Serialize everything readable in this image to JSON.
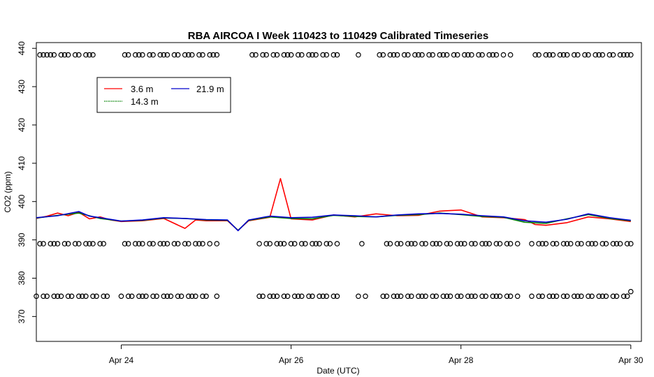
{
  "chart_data": {
    "type": "line",
    "title": "RBA AIRCOA I  Week 110423 to 110429  Calibrated Timeseries",
    "xlabel": "Date (UTC)",
    "ylabel": "CO2 (ppm)",
    "xlim": [
      "2011-04-23 00:00",
      "2011-04-30 03:00"
    ],
    "ylim": [
      363.5,
      441.5
    ],
    "x_ticks": [
      {
        "x": "2011-04-24 00:00",
        "label": "Apr 24"
      },
      {
        "x": "2011-04-26 00:00",
        "label": "Apr 26"
      },
      {
        "x": "2011-04-28 00:00",
        "label": "Apr 28"
      },
      {
        "x": "2011-04-30 00:00",
        "label": "Apr 30"
      }
    ],
    "y_ticks": [
      370,
      380,
      390,
      400,
      410,
      420,
      430,
      440
    ],
    "grid": false,
    "legend_position": "top-left",
    "legend": [
      {
        "label": "3.6 m",
        "color": "#ff0000"
      },
      {
        "label": "21.9 m",
        "color": "#0000cc"
      },
      {
        "label": "14.3 m",
        "color": "#008000"
      }
    ],
    "series": [
      {
        "name": "3.6 m",
        "color": "#ff0000",
        "x": [
          "2011-04-23 00:00",
          "2011-04-23 03:00",
          "2011-04-23 06:00",
          "2011-04-23 09:00",
          "2011-04-23 12:00",
          "2011-04-23 15:00",
          "2011-04-23 18:00",
          "2011-04-23 21:00",
          "2011-04-24 00:00",
          "2011-04-24 06:00",
          "2011-04-24 12:00",
          "2011-04-24 18:00",
          "2011-04-24 21:00",
          "2011-04-25 00:00",
          "2011-04-25 06:00",
          "2011-04-25 09:00",
          "2011-04-25 12:00",
          "2011-04-25 18:00",
          "2011-04-25 21:00",
          "2011-04-26 00:00",
          "2011-04-26 06:00",
          "2011-04-26 12:00",
          "2011-04-26 18:00",
          "2011-04-27 00:00",
          "2011-04-27 06:00",
          "2011-04-27 12:00",
          "2011-04-27 18:00",
          "2011-04-28 00:00",
          "2011-04-28 06:00",
          "2011-04-28 12:00",
          "2011-04-28 18:00",
          "2011-04-28 21:00",
          "2011-04-29 00:00",
          "2011-04-29 06:00",
          "2011-04-29 12:00",
          "2011-04-29 18:00",
          "2011-04-30 00:00"
        ],
        "y": [
          395.6,
          396.2,
          397.0,
          396.3,
          397.2,
          395.5,
          396.0,
          395.2,
          394.8,
          395.0,
          395.6,
          393.0,
          395.2,
          395.0,
          395.0,
          392.5,
          395.0,
          395.9,
          406.0,
          395.5,
          395.2,
          396.5,
          396.0,
          396.8,
          396.3,
          396.4,
          397.5,
          397.8,
          396.0,
          395.8,
          395.3,
          394.0,
          393.8,
          394.5,
          396.0,
          395.5,
          394.8
        ]
      },
      {
        "name": "14.3 m",
        "color": "#008000",
        "x": [
          "2011-04-23 00:00",
          "2011-04-23 06:00",
          "2011-04-23 12:00",
          "2011-04-23 18:00",
          "2011-04-24 00:00",
          "2011-04-24 06:00",
          "2011-04-24 12:00",
          "2011-04-24 18:00",
          "2011-04-25 00:00",
          "2011-04-25 06:00",
          "2011-04-25 09:00",
          "2011-04-25 12:00",
          "2011-04-25 18:00",
          "2011-04-26 00:00",
          "2011-04-26 06:00",
          "2011-04-26 12:00",
          "2011-04-26 18:00",
          "2011-04-27 00:00",
          "2011-04-27 06:00",
          "2011-04-27 12:00",
          "2011-04-27 18:00",
          "2011-04-28 00:00",
          "2011-04-28 06:00",
          "2011-04-28 12:00",
          "2011-04-28 18:00",
          "2011-04-29 00:00",
          "2011-04-29 06:00",
          "2011-04-29 12:00",
          "2011-04-29 18:00",
          "2011-04-30 00:00"
        ],
        "y": [
          395.7,
          396.4,
          397.0,
          395.6,
          394.9,
          395.1,
          395.7,
          395.6,
          395.2,
          395.1,
          392.5,
          395.1,
          396.0,
          395.6,
          395.5,
          396.4,
          396.1,
          396.0,
          396.4,
          396.6,
          397.0,
          396.6,
          396.1,
          395.9,
          394.6,
          394.3,
          395.5,
          396.6,
          395.6,
          395.0
        ]
      },
      {
        "name": "21.9 m",
        "color": "#0000cc",
        "x": [
          "2011-04-23 00:00",
          "2011-04-23 06:00",
          "2011-04-23 12:00",
          "2011-04-23 15:00",
          "2011-04-23 18:00",
          "2011-04-24 00:00",
          "2011-04-24 06:00",
          "2011-04-24 12:00",
          "2011-04-24 18:00",
          "2011-04-25 00:00",
          "2011-04-25 06:00",
          "2011-04-25 09:00",
          "2011-04-25 12:00",
          "2011-04-25 18:00",
          "2011-04-26 00:00",
          "2011-04-26 06:00",
          "2011-04-26 12:00",
          "2011-04-26 18:00",
          "2011-04-27 00:00",
          "2011-04-27 06:00",
          "2011-04-27 12:00",
          "2011-04-27 18:00",
          "2011-04-28 00:00",
          "2011-04-28 06:00",
          "2011-04-28 12:00",
          "2011-04-28 18:00",
          "2011-04-29 00:00",
          "2011-04-29 06:00",
          "2011-04-29 12:00",
          "2011-04-29 18:00",
          "2011-04-30 00:00"
        ],
        "y": [
          395.8,
          396.3,
          397.4,
          396.2,
          395.8,
          394.9,
          395.2,
          395.8,
          395.6,
          395.3,
          395.2,
          392.4,
          395.2,
          396.2,
          395.8,
          395.9,
          396.5,
          396.3,
          396.0,
          396.5,
          396.8,
          396.9,
          396.7,
          396.3,
          396.0,
          395.0,
          394.6,
          395.4,
          396.8,
          395.8,
          395.1
        ]
      }
    ],
    "reference_markers": [
      {
        "name": "high",
        "y": 438.3,
        "x": [
          "2011-04-23 01:00",
          "2011-04-23 02:00",
          "2011-04-23 03:00",
          "2011-04-23 04:00",
          "2011-04-23 05:00",
          "2011-04-23 07:00",
          "2011-04-23 08:00",
          "2011-04-23 09:00",
          "2011-04-23 11:00",
          "2011-04-23 12:00",
          "2011-04-23 14:00",
          "2011-04-23 15:00",
          "2011-04-23 16:00",
          "2011-04-24 01:00",
          "2011-04-24 02:00",
          "2011-04-24 04:00",
          "2011-04-24 05:00",
          "2011-04-24 06:00",
          "2011-04-24 08:00",
          "2011-04-24 09:00",
          "2011-04-24 11:00",
          "2011-04-24 12:00",
          "2011-04-24 13:00",
          "2011-04-24 15:00",
          "2011-04-24 16:00",
          "2011-04-24 18:00",
          "2011-04-24 19:00",
          "2011-04-24 20:00",
          "2011-04-24 22:00",
          "2011-04-24 23:00",
          "2011-04-25 01:00",
          "2011-04-25 02:00",
          "2011-04-25 03:00",
          "2011-04-25 13:00",
          "2011-04-25 14:00",
          "2011-04-25 16:00",
          "2011-04-25 17:00",
          "2011-04-25 19:00",
          "2011-04-25 20:00",
          "2011-04-25 22:00",
          "2011-04-25 23:00",
          "2011-04-26 00:00",
          "2011-04-26 02:00",
          "2011-04-26 03:00",
          "2011-04-26 05:00",
          "2011-04-26 06:00",
          "2011-04-26 07:00",
          "2011-04-26 09:00",
          "2011-04-26 10:00",
          "2011-04-26 12:00",
          "2011-04-26 13:00",
          "2011-04-26 19:00",
          "2011-04-27 01:00",
          "2011-04-27 02:00",
          "2011-04-27 04:00",
          "2011-04-27 05:00",
          "2011-04-27 06:00",
          "2011-04-27 08:00",
          "2011-04-27 09:00",
          "2011-04-27 11:00",
          "2011-04-27 12:00",
          "2011-04-27 13:00",
          "2011-04-27 15:00",
          "2011-04-27 16:00",
          "2011-04-27 18:00",
          "2011-04-27 19:00",
          "2011-04-27 20:00",
          "2011-04-27 22:00",
          "2011-04-27 23:00",
          "2011-04-28 01:00",
          "2011-04-28 02:00",
          "2011-04-28 03:00",
          "2011-04-28 05:00",
          "2011-04-28 06:00",
          "2011-04-28 08:00",
          "2011-04-28 09:00",
          "2011-04-28 10:00",
          "2011-04-28 12:00",
          "2011-04-28 14:00",
          "2011-04-28 21:00",
          "2011-04-28 22:00",
          "2011-04-29 00:00",
          "2011-04-29 01:00",
          "2011-04-29 02:00",
          "2011-04-29 04:00",
          "2011-04-29 05:00",
          "2011-04-29 06:00",
          "2011-04-29 08:00",
          "2011-04-29 09:00",
          "2011-04-29 11:00",
          "2011-04-29 12:00",
          "2011-04-29 14:00",
          "2011-04-29 15:00",
          "2011-04-29 16:00",
          "2011-04-29 18:00",
          "2011-04-29 19:00",
          "2011-04-29 21:00",
          "2011-04-29 22:00",
          "2011-04-29 23:00",
          "2011-04-30 00:00"
        ]
      },
      {
        "name": "mid",
        "y": 389.0,
        "x": [
          "2011-04-23 01:00",
          "2011-04-23 02:00",
          "2011-04-23 04:00",
          "2011-04-23 05:00",
          "2011-04-23 06:00",
          "2011-04-23 08:00",
          "2011-04-23 09:00",
          "2011-04-23 11:00",
          "2011-04-23 12:00",
          "2011-04-23 14:00",
          "2011-04-23 15:00",
          "2011-04-23 16:00",
          "2011-04-23 18:00",
          "2011-04-23 19:00",
          "2011-04-24 01:00",
          "2011-04-24 02:00",
          "2011-04-24 04:00",
          "2011-04-24 05:00",
          "2011-04-24 06:00",
          "2011-04-24 08:00",
          "2011-04-24 09:00",
          "2011-04-24 11:00",
          "2011-04-24 12:00",
          "2011-04-24 13:00",
          "2011-04-24 15:00",
          "2011-04-24 16:00",
          "2011-04-24 18:00",
          "2011-04-24 19:00",
          "2011-04-24 21:00",
          "2011-04-24 22:00",
          "2011-04-24 23:00",
          "2011-04-25 01:00",
          "2011-04-25 03:00",
          "2011-04-25 15:00",
          "2011-04-25 17:00",
          "2011-04-25 18:00",
          "2011-04-25 20:00",
          "2011-04-25 21:00",
          "2011-04-25 22:00",
          "2011-04-26 00:00",
          "2011-04-26 01:00",
          "2011-04-26 03:00",
          "2011-04-26 04:00",
          "2011-04-26 06:00",
          "2011-04-26 07:00",
          "2011-04-26 08:00",
          "2011-04-26 10:00",
          "2011-04-26 11:00",
          "2011-04-26 13:00",
          "2011-04-26 20:00",
          "2011-04-27 03:00",
          "2011-04-27 04:00",
          "2011-04-27 06:00",
          "2011-04-27 07:00",
          "2011-04-27 09:00",
          "2011-04-27 10:00",
          "2011-04-27 11:00",
          "2011-04-27 13:00",
          "2011-04-27 14:00",
          "2011-04-27 16:00",
          "2011-04-27 17:00",
          "2011-04-27 18:00",
          "2011-04-27 20:00",
          "2011-04-27 21:00",
          "2011-04-27 23:00",
          "2011-04-28 00:00",
          "2011-04-28 01:00",
          "2011-04-28 03:00",
          "2011-04-28 04:00",
          "2011-04-28 06:00",
          "2011-04-28 07:00",
          "2011-04-28 08:00",
          "2011-04-28 10:00",
          "2011-04-28 11:00",
          "2011-04-28 13:00",
          "2011-04-28 14:00",
          "2011-04-28 16:00",
          "2011-04-28 20:00",
          "2011-04-28 22:00",
          "2011-04-28 23:00",
          "2011-04-29 00:00",
          "2011-04-29 02:00",
          "2011-04-29 03:00",
          "2011-04-29 05:00",
          "2011-04-29 06:00",
          "2011-04-29 07:00",
          "2011-04-29 09:00",
          "2011-04-29 10:00",
          "2011-04-29 12:00",
          "2011-04-29 13:00",
          "2011-04-29 14:00",
          "2011-04-29 16:00",
          "2011-04-29 17:00",
          "2011-04-29 19:00",
          "2011-04-29 20:00",
          "2011-04-29 21:00",
          "2011-04-29 23:00",
          "2011-04-30 00:00"
        ]
      },
      {
        "name": "low",
        "y": 375.3,
        "x": [
          "2011-04-23 00:00",
          "2011-04-23 02:00",
          "2011-04-23 03:00",
          "2011-04-23 05:00",
          "2011-04-23 06:00",
          "2011-04-23 07:00",
          "2011-04-23 09:00",
          "2011-04-23 10:00",
          "2011-04-23 12:00",
          "2011-04-23 13:00",
          "2011-04-23 14:00",
          "2011-04-23 16:00",
          "2011-04-23 17:00",
          "2011-04-23 19:00",
          "2011-04-23 20:00",
          "2011-04-24 00:00",
          "2011-04-24 02:00",
          "2011-04-24 03:00",
          "2011-04-24 05:00",
          "2011-04-24 06:00",
          "2011-04-24 07:00",
          "2011-04-24 09:00",
          "2011-04-24 10:00",
          "2011-04-24 12:00",
          "2011-04-24 13:00",
          "2011-04-24 14:00",
          "2011-04-24 16:00",
          "2011-04-24 17:00",
          "2011-04-24 19:00",
          "2011-04-24 20:00",
          "2011-04-24 21:00",
          "2011-04-24 23:00",
          "2011-04-25 00:00",
          "2011-04-25 03:00",
          "2011-04-25 15:00",
          "2011-04-25 16:00",
          "2011-04-25 18:00",
          "2011-04-25 19:00",
          "2011-04-25 20:00",
          "2011-04-25 22:00",
          "2011-04-25 23:00",
          "2011-04-26 01:00",
          "2011-04-26 02:00",
          "2011-04-26 03:00",
          "2011-04-26 05:00",
          "2011-04-26 06:00",
          "2011-04-26 08:00",
          "2011-04-26 09:00",
          "2011-04-26 10:00",
          "2011-04-26 12:00",
          "2011-04-26 13:00",
          "2011-04-26 19:00",
          "2011-04-26 21:00",
          "2011-04-27 02:00",
          "2011-04-27 03:00",
          "2011-04-27 05:00",
          "2011-04-27 06:00",
          "2011-04-27 07:00",
          "2011-04-27 09:00",
          "2011-04-27 10:00",
          "2011-04-27 12:00",
          "2011-04-27 13:00",
          "2011-04-27 14:00",
          "2011-04-27 16:00",
          "2011-04-27 17:00",
          "2011-04-27 19:00",
          "2011-04-27 20:00",
          "2011-04-27 21:00",
          "2011-04-27 23:00",
          "2011-04-28 00:00",
          "2011-04-28 02:00",
          "2011-04-28 03:00",
          "2011-04-28 04:00",
          "2011-04-28 06:00",
          "2011-04-28 07:00",
          "2011-04-28 09:00",
          "2011-04-28 10:00",
          "2011-04-28 11:00",
          "2011-04-28 13:00",
          "2011-04-28 14:00",
          "2011-04-28 16:00",
          "2011-04-28 20:00",
          "2011-04-28 22:00",
          "2011-04-28 23:00",
          "2011-04-29 01:00",
          "2011-04-29 02:00",
          "2011-04-29 03:00",
          "2011-04-29 05:00",
          "2011-04-29 06:00",
          "2011-04-29 08:00",
          "2011-04-29 09:00",
          "2011-04-29 10:00",
          "2011-04-29 12:00",
          "2011-04-29 13:00",
          "2011-04-29 15:00",
          "2011-04-29 16:00",
          "2011-04-29 17:00",
          "2011-04-29 19:00",
          "2011-04-29 20:00",
          "2011-04-29 22:00",
          "2011-04-29 23:00"
        ]
      },
      {
        "name": "outlier",
        "y": 376.5,
        "x": [
          "2011-04-30 00:00"
        ]
      }
    ]
  }
}
